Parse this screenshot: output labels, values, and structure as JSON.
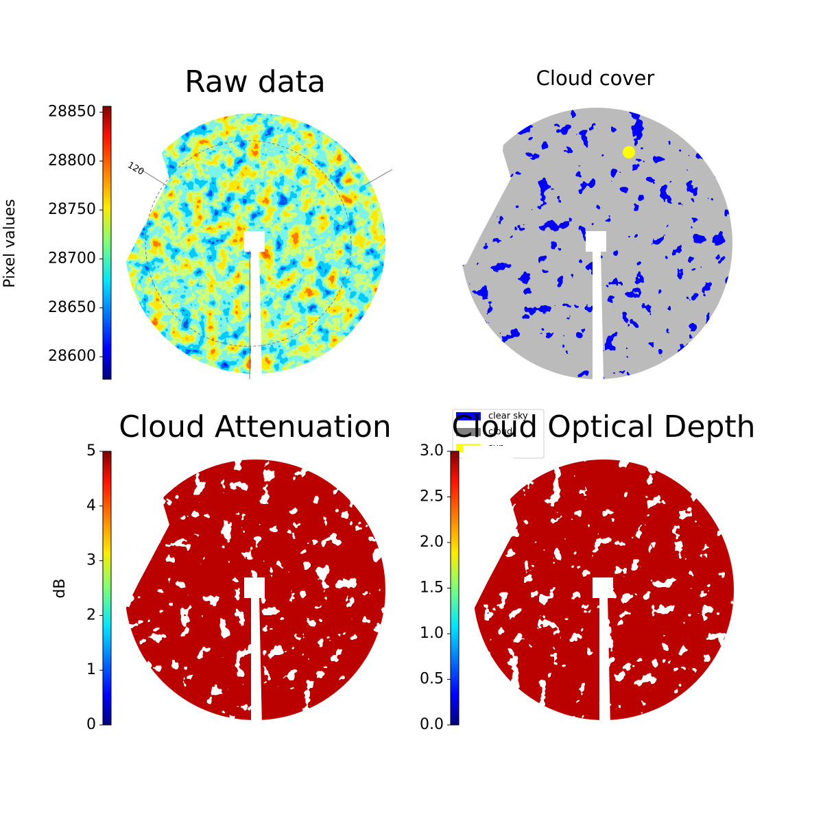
{
  "chart_data": [
    {
      "type": "image",
      "title": "Raw data",
      "colormap": "jet",
      "colorbar_label": "Pixel values",
      "clim": [
        28577,
        28856
      ],
      "cticks": [
        28600,
        28650,
        28700,
        28750,
        28800,
        28850
      ],
      "annotation": "120"
    },
    {
      "type": "image",
      "title": "Cloud cover",
      "legend_position": "lower left",
      "series": [
        {
          "name": "clear sky",
          "color": "#0000ff"
        },
        {
          "name": "cloud",
          "color": "#808080"
        },
        {
          "name": "sun",
          "color": "#ffff00"
        }
      ]
    },
    {
      "type": "image",
      "title": "Cloud Attenuation",
      "colormap": "jet",
      "colorbar_label": "dB",
      "clim": [
        0,
        5
      ],
      "cticks": [
        0,
        1,
        2,
        3,
        4,
        5
      ]
    },
    {
      "type": "image",
      "title": "Cloud Optical Depth",
      "colormap": "jet",
      "clim": [
        0,
        3
      ],
      "cticks": [
        {
          "value": 0,
          "label": "0.0"
        },
        0.5,
        {
          "value": 1,
          "label": "1.0"
        },
        1.5,
        {
          "value": 2,
          "label": "2.0"
        },
        2.5,
        {
          "value": 3,
          "label": "3.0"
        }
      ]
    }
  ]
}
